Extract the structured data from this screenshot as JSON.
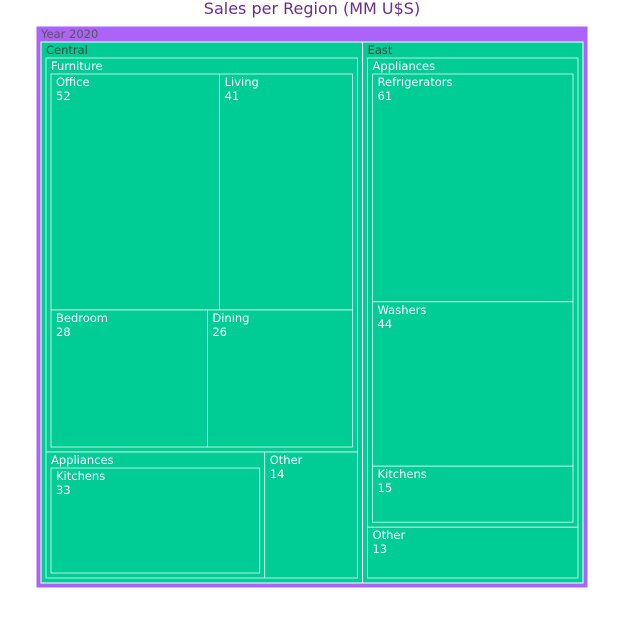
{
  "chart_data": {
    "type": "treemap",
    "title": "Sales per Region (MM U$S)",
    "root": {
      "label": "Year 2020",
      "children": [
        {
          "label": "Central",
          "children": [
            {
              "label": "Furniture",
              "children": [
                {
                  "label": "Office",
                  "value": 52
                },
                {
                  "label": "Living",
                  "value": 41
                },
                {
                  "label": "Bedroom",
                  "value": 28
                },
                {
                  "label": "Dining",
                  "value": 26
                }
              ]
            },
            {
              "label": "Appliances",
              "children": [
                {
                  "label": "Kitchens",
                  "value": 33
                }
              ]
            },
            {
              "label": "Other",
              "value": 14
            }
          ]
        },
        {
          "label": "East",
          "children": [
            {
              "label": "Appliances",
              "children": [
                {
                  "label": "Refrigerators",
                  "value": 61
                },
                {
                  "label": "Washers",
                  "value": 44
                },
                {
                  "label": "Kitchens",
                  "value": 15
                }
              ]
            },
            {
              "label": "Other",
              "value": 13
            }
          ]
        }
      ]
    },
    "colors": {
      "root": "#ab63fa",
      "region": "#ab63fa",
      "Furniture": "#636efa",
      "Appliances": "#ef553b",
      "Other": "#00cc96",
      "border": "#ffffff",
      "label_dark": "#444444",
      "label_light": "#ffffff"
    }
  }
}
